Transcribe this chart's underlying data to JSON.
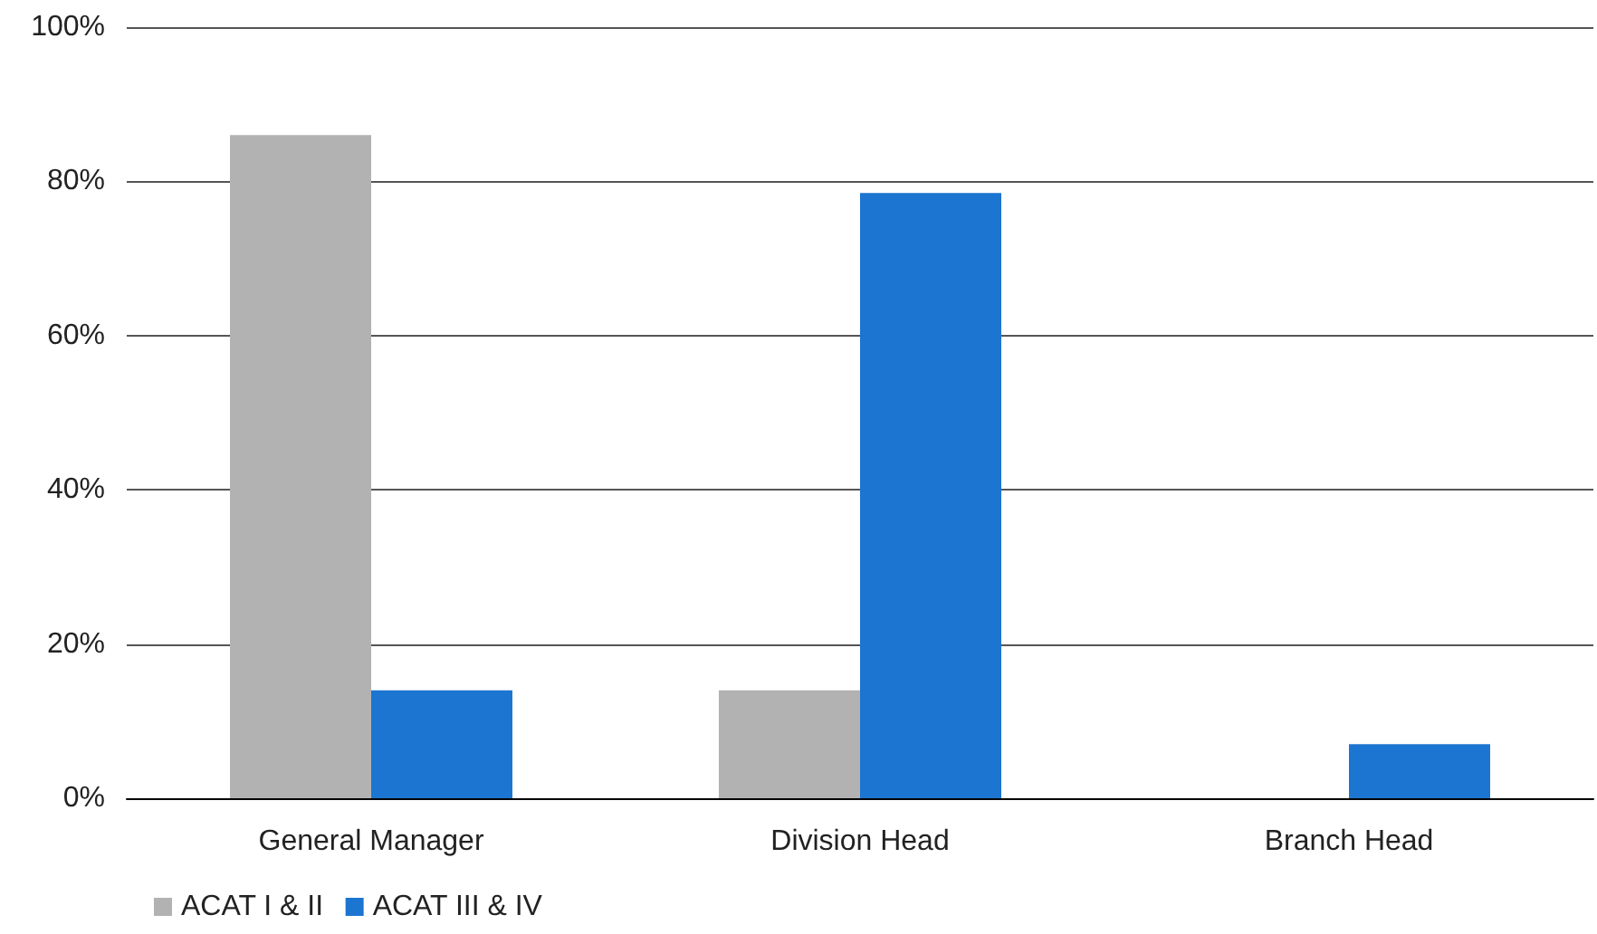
{
  "chart_data": {
    "type": "bar",
    "categories": [
      "General Manager",
      "Division Head",
      "Branch Head"
    ],
    "series": [
      {
        "name": "ACAT I & II",
        "color": "#b2b2b2",
        "values": [
          86,
          14,
          0
        ]
      },
      {
        "name": "ACAT III & IV",
        "color": "#1c75d0",
        "values": [
          14,
          78.5,
          7
        ]
      }
    ],
    "ylim": [
      0,
      100
    ],
    "yticks": [
      {
        "value": 0,
        "label": "0%"
      },
      {
        "value": 20,
        "label": "20%"
      },
      {
        "value": 40,
        "label": "40%"
      },
      {
        "value": 60,
        "label": "60%"
      },
      {
        "value": 80,
        "label": "80%"
      },
      {
        "value": 100,
        "label": "100%"
      }
    ],
    "grid": "y",
    "legend": "bottom left"
  }
}
